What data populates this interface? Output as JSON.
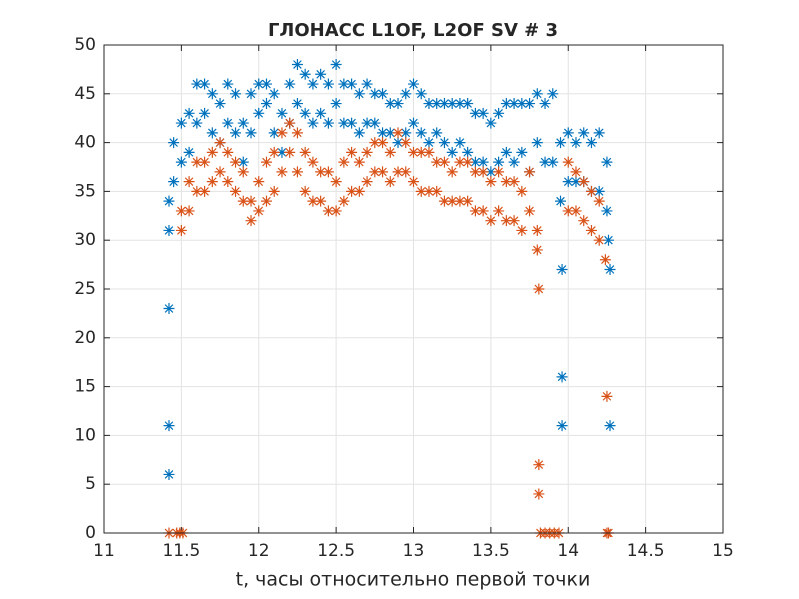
{
  "chart_data": {
    "type": "scatter",
    "title": "ГЛОНАСС L1OF, L2OF SV # 3",
    "x_label": "t, часы относительно первой точки",
    "xlim": [
      11,
      15
    ],
    "xticks": [
      11,
      11.5,
      12,
      12.5,
      13,
      13.5,
      14,
      14.5,
      15
    ],
    "ylim": [
      0,
      50
    ],
    "yticks": [
      0,
      5,
      10,
      15,
      20,
      25,
      30,
      35,
      40,
      45,
      50
    ],
    "grid": true,
    "marker": "asterisk",
    "series": [
      {
        "color": "#0072bd",
        "x": [
          11.42,
          11.42,
          11.42,
          11.42,
          11.42,
          11.45,
          11.45,
          11.5,
          11.5,
          11.55,
          11.55,
          11.6,
          11.6,
          11.65,
          11.65,
          11.7,
          11.7,
          11.75,
          11.75,
          11.8,
          11.8,
          11.85,
          11.85,
          11.9,
          11.9,
          11.95,
          11.95,
          12,
          12,
          12.05,
          12.05,
          12.1,
          12.1,
          12.15,
          12.15,
          12.2,
          12.2,
          12.25,
          12.25,
          12.3,
          12.3,
          12.35,
          12.35,
          12.4,
          12.4,
          12.45,
          12.45,
          12.5,
          12.5,
          12.55,
          12.55,
          12.6,
          12.6,
          12.65,
          12.65,
          12.7,
          12.7,
          12.75,
          12.75,
          12.8,
          12.8,
          12.85,
          12.85,
          12.9,
          12.9,
          12.95,
          12.95,
          13,
          13,
          13.05,
          13.05,
          13.1,
          13.1,
          13.15,
          13.15,
          13.2,
          13.2,
          13.25,
          13.25,
          13.3,
          13.3,
          13.35,
          13.35,
          13.4,
          13.4,
          13.45,
          13.45,
          13.5,
          13.5,
          13.55,
          13.55,
          13.6,
          13.6,
          13.65,
          13.65,
          13.7,
          13.7,
          13.75,
          13.75,
          13.8,
          13.8,
          13.85,
          13.85,
          13.9,
          13.9,
          13.95,
          13.95,
          13.96,
          13.96,
          13.96,
          14,
          14,
          14.05,
          14.05,
          14.1,
          14.1,
          14.15,
          14.15,
          14.2,
          14.2,
          14.25,
          14.25,
          14.26,
          14.27,
          14.27
        ],
        "values": [
          34,
          31,
          23,
          11,
          6,
          40,
          36,
          42,
          38,
          43,
          39,
          46,
          42,
          46,
          43,
          45,
          41,
          44,
          40,
          46,
          42,
          45,
          41,
          42,
          38,
          45,
          41,
          46,
          43,
          46,
          44,
          45,
          41,
          43,
          39,
          46,
          42,
          48,
          44,
          47,
          43,
          46,
          42,
          47,
          43,
          46,
          42,
          48,
          44,
          46,
          42,
          46,
          42,
          45,
          41,
          46,
          42,
          45,
          42,
          45,
          41,
          44,
          41,
          44,
          40,
          45,
          41,
          46,
          42,
          45,
          41,
          44,
          40,
          44,
          41,
          44,
          40,
          44,
          39,
          44,
          40,
          44,
          39,
          43,
          38,
          43,
          38,
          42,
          37,
          43,
          38,
          44,
          39,
          44,
          38,
          44,
          39,
          44,
          37,
          45,
          40,
          44,
          38,
          45,
          38,
          40,
          34,
          27,
          16,
          11,
          41,
          36,
          40,
          36,
          41,
          36,
          40,
          35,
          41,
          35,
          38,
          33,
          30,
          27,
          11
        ]
      },
      {
        "color": "#d95319",
        "x": [
          11.42,
          11.47,
          11.49,
          11.51,
          11.5,
          11.5,
          11.55,
          11.55,
          11.6,
          11.6,
          11.65,
          11.65,
          11.7,
          11.7,
          11.75,
          11.75,
          11.8,
          11.8,
          11.85,
          11.85,
          11.9,
          11.9,
          11.95,
          11.95,
          12,
          12,
          12.05,
          12.05,
          12.1,
          12.1,
          12.15,
          12.15,
          12.2,
          12.2,
          12.25,
          12.25,
          12.3,
          12.3,
          12.35,
          12.35,
          12.4,
          12.4,
          12.45,
          12.45,
          12.5,
          12.5,
          12.55,
          12.55,
          12.6,
          12.6,
          12.65,
          12.65,
          12.7,
          12.7,
          12.75,
          12.75,
          12.8,
          12.8,
          12.85,
          12.85,
          12.9,
          12.9,
          12.95,
          12.95,
          13,
          13,
          13.05,
          13.05,
          13.1,
          13.1,
          13.15,
          13.15,
          13.2,
          13.2,
          13.25,
          13.25,
          13.3,
          13.3,
          13.35,
          13.35,
          13.4,
          13.4,
          13.45,
          13.45,
          13.5,
          13.5,
          13.55,
          13.55,
          13.6,
          13.6,
          13.65,
          13.65,
          13.7,
          13.7,
          13.75,
          13.75,
          13.8,
          13.8,
          13.81,
          13.81,
          13.81,
          13.82,
          13.85,
          13.88,
          13.91,
          13.94,
          14,
          14,
          14.05,
          14.05,
          14.1,
          14.1,
          14.15,
          14.15,
          14.2,
          14.2,
          14.24,
          14.25,
          14.25,
          14.26
        ],
        "values": [
          0,
          0,
          0,
          0,
          33,
          31,
          36,
          33,
          38,
          35,
          38,
          35,
          39,
          36,
          40,
          37,
          39,
          36,
          38,
          35,
          37,
          34,
          34,
          32,
          36,
          33,
          38,
          34,
          39,
          35,
          41,
          37,
          42,
          39,
          41,
          37,
          39,
          35,
          38,
          34,
          37,
          34,
          37,
          33,
          36,
          33,
          38,
          34,
          39,
          35,
          38,
          35,
          39,
          36,
          40,
          37,
          40,
          37,
          39,
          36,
          41,
          37,
          40,
          37,
          39,
          36,
          39,
          35,
          39,
          35,
          38,
          35,
          38,
          34,
          37,
          34,
          38,
          34,
          38,
          34,
          37,
          33,
          37,
          33,
          36,
          32,
          37,
          33,
          36,
          32,
          36,
          32,
          35,
          31,
          37,
          33,
          31,
          29,
          25,
          7,
          4,
          0,
          0,
          0,
          0,
          0,
          38,
          33,
          37,
          33,
          36,
          32,
          35,
          31,
          34,
          30,
          28,
          14,
          0,
          0
        ]
      }
    ]
  }
}
